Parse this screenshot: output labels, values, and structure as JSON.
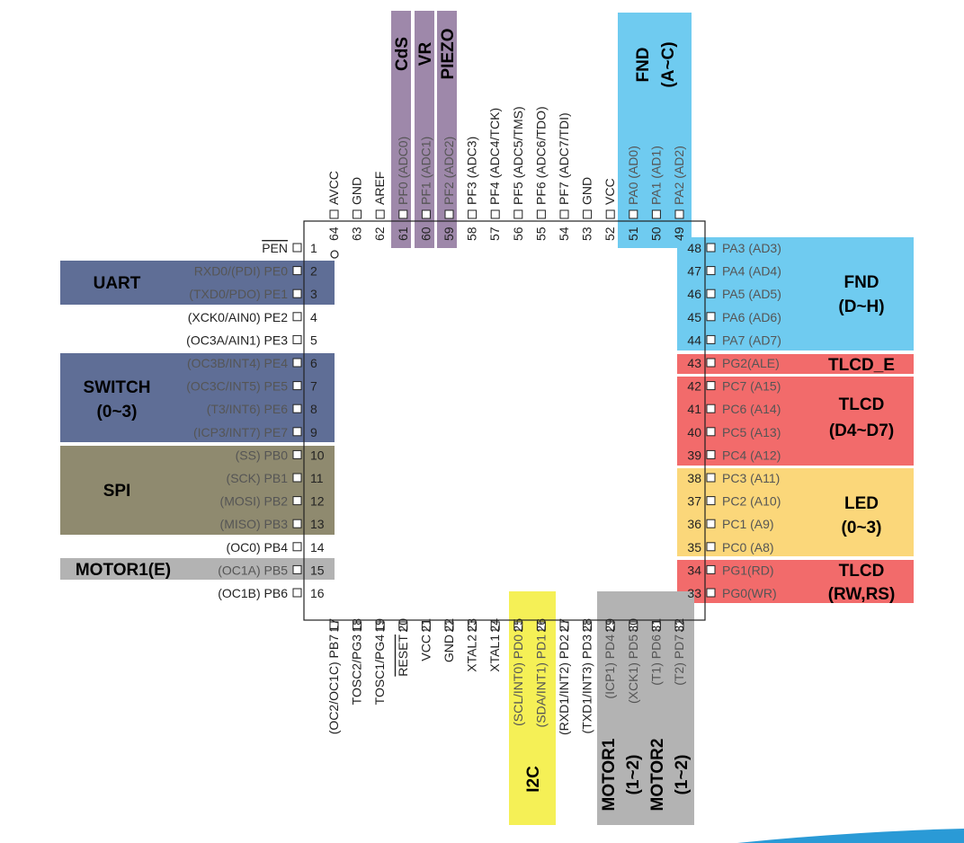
{
  "chip": {
    "left": [
      {
        "num": "1",
        "label": "PEN",
        "overline": true
      },
      {
        "num": "2",
        "label": "RXD0/(PDI) PE0"
      },
      {
        "num": "3",
        "label": "(TXD0/PDO) PE1"
      },
      {
        "num": "4",
        "label": "(XCK0/AIN0) PE2"
      },
      {
        "num": "5",
        "label": "(OC3A/AIN1) PE3"
      },
      {
        "num": "6",
        "label": "(OC3B/INT4) PE4"
      },
      {
        "num": "7",
        "label": "(OC3C/INT5) PE5"
      },
      {
        "num": "8",
        "label": "(T3/INT6) PE6"
      },
      {
        "num": "9",
        "label": "(ICP3/INT7) PE7"
      },
      {
        "num": "10",
        "label": "(SS) PB0"
      },
      {
        "num": "11",
        "label": "(SCK) PB1"
      },
      {
        "num": "12",
        "label": "(MOSI) PB2"
      },
      {
        "num": "13",
        "label": "(MISO) PB3"
      },
      {
        "num": "14",
        "label": "(OC0) PB4"
      },
      {
        "num": "15",
        "label": "(OC1A) PB5"
      },
      {
        "num": "16",
        "label": "(OC1B) PB6"
      }
    ],
    "right": [
      {
        "num": "48",
        "label": "PA3 (AD3)"
      },
      {
        "num": "47",
        "label": "PA4 (AD4)"
      },
      {
        "num": "46",
        "label": "PA5 (AD5)"
      },
      {
        "num": "45",
        "label": "PA6 (AD6)"
      },
      {
        "num": "44",
        "label": "PA7 (AD7)"
      },
      {
        "num": "43",
        "label": "PG2(ALE)"
      },
      {
        "num": "42",
        "label": "PC7 (A15)"
      },
      {
        "num": "41",
        "label": "PC6 (A14)"
      },
      {
        "num": "40",
        "label": "PC5 (A13)"
      },
      {
        "num": "39",
        "label": "PC4 (A12)"
      },
      {
        "num": "38",
        "label": "PC3 (A11)"
      },
      {
        "num": "37",
        "label": "PC2 (A10)"
      },
      {
        "num": "36",
        "label": "PC1 (A9)"
      },
      {
        "num": "35",
        "label": "PC0 (A8)"
      },
      {
        "num": "34",
        "label": "PG1(RD)"
      },
      {
        "num": "33",
        "label": "PG0(WR)"
      }
    ],
    "top": [
      {
        "num": "64",
        "label": "AVCC"
      },
      {
        "num": "63",
        "label": "GND"
      },
      {
        "num": "62",
        "label": "AREF"
      },
      {
        "num": "61",
        "label": "PF0 (ADC0)"
      },
      {
        "num": "60",
        "label": "PF1 (ADC1)"
      },
      {
        "num": "59",
        "label": "PF2 (ADC2)"
      },
      {
        "num": "58",
        "label": "PF3 (ADC3)"
      },
      {
        "num": "57",
        "label": "PF4 (ADC4/TCK)"
      },
      {
        "num": "56",
        "label": "PF5 (ADC5/TMS)"
      },
      {
        "num": "55",
        "label": "PF6 (ADC6/TDO)"
      },
      {
        "num": "54",
        "label": "PF7 (ADC7/TDI)"
      },
      {
        "num": "53",
        "label": "GND"
      },
      {
        "num": "52",
        "label": "VCC"
      },
      {
        "num": "51",
        "label": "PA0 (AD0)"
      },
      {
        "num": "50",
        "label": "PA1 (AD1)"
      },
      {
        "num": "49",
        "label": "PA2 (AD2)"
      }
    ],
    "bottom": [
      {
        "num": "17",
        "label": "(OC2/OC1C) PB7"
      },
      {
        "num": "18",
        "label": "TOSC2/PG3"
      },
      {
        "num": "19",
        "label": "TOSC1/PG4"
      },
      {
        "num": "20",
        "label": "RESET",
        "overline": true
      },
      {
        "num": "21",
        "label": "VCC"
      },
      {
        "num": "22",
        "label": "GND"
      },
      {
        "num": "23",
        "label": "XTAL2"
      },
      {
        "num": "24",
        "label": "XTAL1"
      },
      {
        "num": "25",
        "label": "(SCL/INT0) PD0"
      },
      {
        "num": "26",
        "label": "(SDA/INT1) PD1"
      },
      {
        "num": "27",
        "label": "(RXD1/INT2) PD2"
      },
      {
        "num": "28",
        "label": "(TXD1/INT3) PD3"
      },
      {
        "num": "29",
        "label": "(ICP1) PD4"
      },
      {
        "num": "30",
        "label": "(XCK1) PD5"
      },
      {
        "num": "31",
        "label": "(T1) PD6"
      },
      {
        "num": "32",
        "label": "(T2) PD7"
      }
    ]
  },
  "groups": {
    "uart": {
      "label": "UART",
      "color": "#5f6e96"
    },
    "switch": {
      "line1": "SWITCH",
      "line2": "(0~3)",
      "color": "#5f6e96"
    },
    "spi": {
      "label": "SPI",
      "color": "#8f8a6f"
    },
    "motor1e": {
      "label": "MOTOR1(E)",
      "color": "#b3b3b3"
    },
    "cds": {
      "label": "CdS",
      "color": "#9e88aa"
    },
    "vr": {
      "label": "VR",
      "color": "#9e88aa"
    },
    "piezo": {
      "label": "PIEZO",
      "color": "#9e88aa"
    },
    "fnd_top": {
      "line1": "FND",
      "line2": "(A~C)",
      "color": "#6fcbf0"
    },
    "fnd_right": {
      "line1": "FND",
      "line2": "(D~H)",
      "color": "#6fcbf0"
    },
    "tlcd_e": {
      "label": "TLCD_E",
      "color": "#f26b6b"
    },
    "tlcd_d": {
      "line1": "TLCD",
      "line2": "(D4~D7)",
      "color": "#f26b6b"
    },
    "led": {
      "line1": "LED",
      "line2": "(0~3)",
      "color": "#fbd77a"
    },
    "tlcd_rw": {
      "line1": "TLCD",
      "line2": "(RW,RS)",
      "color": "#f26b6b"
    },
    "i2c": {
      "label": "I2C",
      "color": "#f5f056"
    },
    "motor1": {
      "line1": "MOTOR1",
      "line2": "(1~2)",
      "color": "#b3b3b3"
    },
    "motor2": {
      "line1": "MOTOR2",
      "line2": "(1~2)",
      "color": "#b3b3b3"
    }
  }
}
